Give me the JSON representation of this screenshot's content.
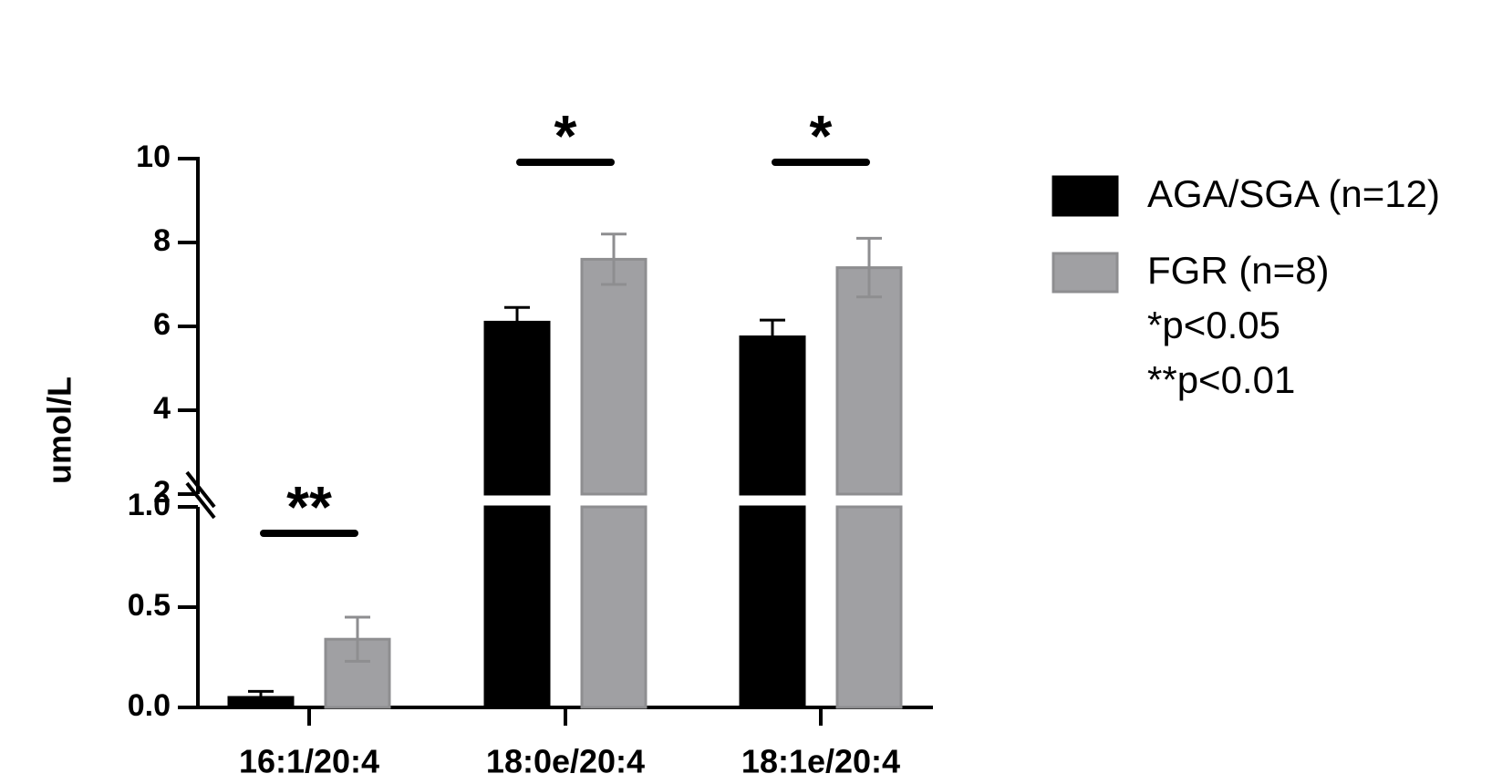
{
  "chart_data": {
    "type": "bar",
    "y_label": "umol/L",
    "categories": [
      "16:1/20:4",
      "18:0e/20:4",
      "18:1e/20:4"
    ],
    "series": [
      {
        "name": "AGA/SGA (n=12)",
        "color": "#000000",
        "values": [
          0.05,
          6.1,
          5.75
        ],
        "errors": [
          0.03,
          0.35,
          0.4
        ]
      },
      {
        "name": "FGR (n=8)",
        "color": "#a0a0a3",
        "values": [
          0.34,
          7.6,
          7.4
        ],
        "errors": [
          0.11,
          0.6,
          0.7
        ]
      }
    ],
    "ylim": [
      0,
      10
    ],
    "ybreak": [
      1,
      2
    ],
    "yticks": [
      {
        "value": 0,
        "label": "0.0"
      },
      0.5,
      {
        "value": 1,
        "label": "1.0"
      },
      2,
      4,
      6,
      8,
      10
    ],
    "significance": [
      "**",
      "*",
      "*"
    ],
    "notes": [
      "*p<0.05",
      "**p<0.01"
    ]
  }
}
